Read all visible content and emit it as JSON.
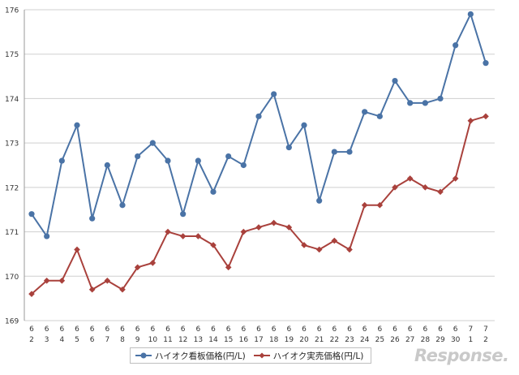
{
  "chart_data": {
    "type": "line",
    "title": "",
    "xlabel": "",
    "ylabel": "",
    "ylim": [
      169,
      176
    ],
    "yticks": [
      169,
      170,
      171,
      172,
      173,
      174,
      175,
      176
    ],
    "grid": "horizontal",
    "legend_position": "bottom",
    "categories": [
      {
        "m": "6",
        "d": "2"
      },
      {
        "m": "6",
        "d": "3"
      },
      {
        "m": "6",
        "d": "4"
      },
      {
        "m": "6",
        "d": "5"
      },
      {
        "m": "6",
        "d": "6"
      },
      {
        "m": "6",
        "d": "7"
      },
      {
        "m": "6",
        "d": "8"
      },
      {
        "m": "6",
        "d": "9"
      },
      {
        "m": "6",
        "d": "10"
      },
      {
        "m": "6",
        "d": "11"
      },
      {
        "m": "6",
        "d": "12"
      },
      {
        "m": "6",
        "d": "13"
      },
      {
        "m": "6",
        "d": "14"
      },
      {
        "m": "6",
        "d": "15"
      },
      {
        "m": "6",
        "d": "16"
      },
      {
        "m": "6",
        "d": "17"
      },
      {
        "m": "6",
        "d": "18"
      },
      {
        "m": "6",
        "d": "19"
      },
      {
        "m": "6",
        "d": "20"
      },
      {
        "m": "6",
        "d": "21"
      },
      {
        "m": "6",
        "d": "22"
      },
      {
        "m": "6",
        "d": "23"
      },
      {
        "m": "6",
        "d": "24"
      },
      {
        "m": "6",
        "d": "25"
      },
      {
        "m": "6",
        "d": "26"
      },
      {
        "m": "6",
        "d": "27"
      },
      {
        "m": "6",
        "d": "28"
      },
      {
        "m": "6",
        "d": "29"
      },
      {
        "m": "6",
        "d": "30"
      },
      {
        "m": "7",
        "d": "1"
      },
      {
        "m": "7",
        "d": "2"
      }
    ],
    "series": [
      {
        "name": "ハイオク看板価格(円/L)",
        "color": "#4a73a6",
        "marker": "circle",
        "values": [
          171.4,
          170.9,
          172.6,
          173.4,
          171.3,
          172.5,
          171.6,
          172.7,
          173.0,
          172.6,
          171.4,
          172.6,
          171.9,
          172.7,
          172.5,
          173.6,
          174.1,
          172.9,
          173.4,
          171.7,
          172.8,
          172.8,
          173.7,
          173.6,
          174.4,
          173.9,
          173.9,
          174.0,
          175.2,
          175.9,
          174.8
        ]
      },
      {
        "name": "ハイオク実売価格(円/L)",
        "color": "#a9413c",
        "marker": "diamond",
        "values": [
          169.6,
          169.9,
          169.9,
          170.6,
          169.7,
          169.9,
          169.7,
          170.2,
          170.3,
          171.0,
          170.9,
          170.9,
          170.7,
          170.2,
          171.0,
          171.1,
          171.2,
          171.1,
          170.7,
          170.6,
          170.8,
          170.6,
          171.6,
          171.6,
          172.0,
          172.2,
          172.0,
          171.9,
          172.2,
          173.5,
          173.6
        ]
      }
    ]
  },
  "watermark": "Response."
}
